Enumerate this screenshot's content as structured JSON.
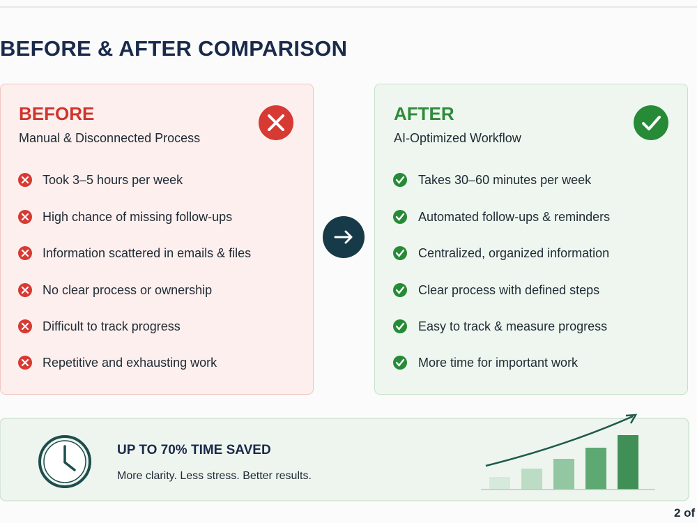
{
  "title": "BEFORE & AFTER COMPARISON",
  "before": {
    "heading": "BEFORE",
    "subtitle": "Manual & Disconnected Process",
    "items": [
      "Took 3–5 hours per week",
      "High chance of missing follow-ups",
      "Information scattered in emails & files",
      "No clear process or ownership",
      "Difficult to track progress",
      "Repetitive and exhausting work"
    ]
  },
  "after": {
    "heading": "AFTER",
    "subtitle": "AI-Optimized Workflow",
    "items": [
      "Takes 30–60 minutes per week",
      "Automated follow-ups & reminders",
      "Centralized, organized information",
      "Clear process with defined steps",
      "Easy to track & measure progress",
      "More time for important work"
    ]
  },
  "summary": {
    "title": "UP TO 70% TIME SAVED",
    "subtitle": "More clarity. Less stress. Better results."
  },
  "page": "2 of"
}
